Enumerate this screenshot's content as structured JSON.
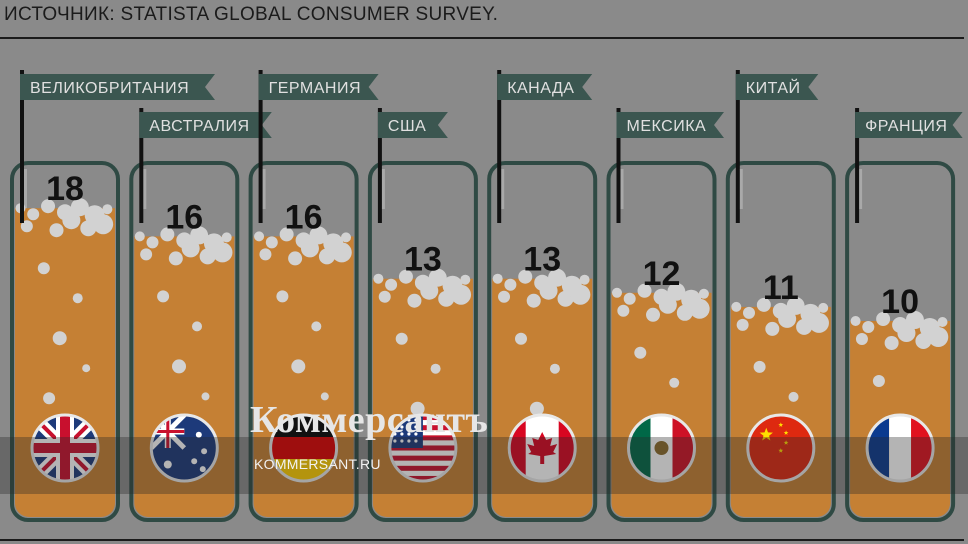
{
  "source_text": "ИСТОЧНИК: STATISTA GLOBAL CONSUMER SURVEY.",
  "watermark": {
    "brand": "Коммерсантъ",
    "url": "KOMMERSANT.RU"
  },
  "colors": {
    "beer": "#c58034",
    "tube_outline": "#2f4a44",
    "flag_label": "#3b5650",
    "bubble": "#d2d2d2"
  },
  "chart_data": {
    "type": "bar",
    "title": "",
    "xlabel": "",
    "ylabel": "",
    "categories": [
      "ВЕЛИКОБРИТАНИЯ",
      "АВСТРАЛИЯ",
      "ГЕРМАНИЯ",
      "США",
      "КАНАДА",
      "МЕКСИКА",
      "КИТАЙ",
      "ФРАНЦИЯ"
    ],
    "values": [
      18,
      16,
      16,
      13,
      13,
      12,
      11,
      10
    ],
    "value_labels": [
      "18",
      "16",
      "16",
      "13",
      "13",
      "12",
      "11",
      "10"
    ],
    "flag_icons": [
      "uk-flag-icon",
      "australia-flag-icon",
      "germany-flag-icon",
      "usa-flag-icon",
      "canada-flag-icon",
      "mexico-flag-icon",
      "china-flag-icon",
      "france-flag-icon"
    ]
  }
}
